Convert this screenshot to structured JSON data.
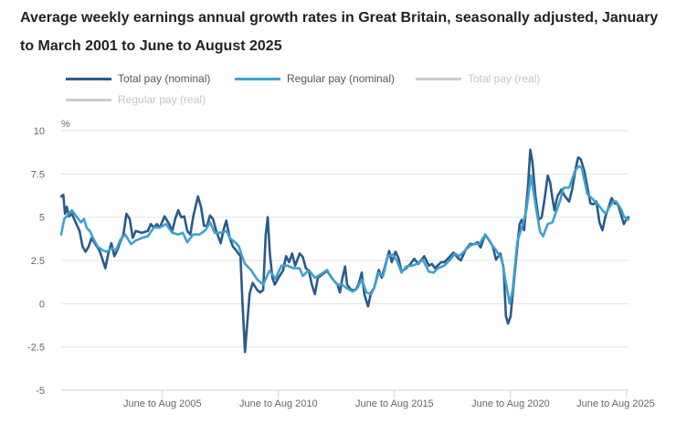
{
  "chart_data": {
    "type": "line",
    "title": "Average weekly earnings annual growth rates in Great Britain, seasonally adjusted, January to March 2001 to June to August 2025",
    "ylabel": "%",
    "xlabel": "",
    "ylim": [
      -5,
      10
    ],
    "yticks": [
      10,
      7.5,
      5,
      2.5,
      0,
      -2.5,
      -5
    ],
    "ytick_labels": [
      "10",
      "7.5",
      "5",
      "2.5",
      "0",
      "-2.5",
      "-5"
    ],
    "xlim": [
      2001.19,
      2025.63
    ],
    "xticks": [
      2005.55,
      2010.55,
      2015.55,
      2020.55,
      2025.55
    ],
    "xtick_labels": [
      "June to Aug 2005",
      "June to Aug 2010",
      "June to Aug 2015",
      "June to Aug 2020",
      "June to Aug 2025"
    ],
    "grid": true,
    "legend_position": "top-left",
    "series": [
      {
        "name": "Total pay (nominal)",
        "color": "#2a5a8c",
        "visible": true,
        "points": [
          [
            2001.19,
            6.2
          ],
          [
            2001.28,
            6.3
          ],
          [
            2001.35,
            5.2
          ],
          [
            2001.43,
            5.6
          ],
          [
            2001.52,
            5.05
          ],
          [
            2001.65,
            5.2
          ],
          [
            2001.78,
            4.8
          ],
          [
            2001.98,
            4.2
          ],
          [
            2002.11,
            3.3
          ],
          [
            2002.24,
            3.0
          ],
          [
            2002.37,
            3.3
          ],
          [
            2002.5,
            3.8
          ],
          [
            2002.63,
            3.5
          ],
          [
            2002.83,
            3.1
          ],
          [
            2002.96,
            2.6
          ],
          [
            2003.09,
            2.05
          ],
          [
            2003.22,
            2.9
          ],
          [
            2003.35,
            3.5
          ],
          [
            2003.48,
            2.75
          ],
          [
            2003.61,
            3.1
          ],
          [
            2003.74,
            3.6
          ],
          [
            2003.87,
            4.0
          ],
          [
            2004.0,
            5.2
          ],
          [
            2004.14,
            4.9
          ],
          [
            2004.27,
            3.8
          ],
          [
            2004.4,
            4.2
          ],
          [
            2004.66,
            4.1
          ],
          [
            2004.92,
            4.2
          ],
          [
            2005.05,
            4.6
          ],
          [
            2005.18,
            4.4
          ],
          [
            2005.31,
            4.6
          ],
          [
            2005.44,
            4.4
          ],
          [
            2005.64,
            5.05
          ],
          [
            2005.84,
            4.6
          ],
          [
            2005.97,
            4.2
          ],
          [
            2006.1,
            4.9
          ],
          [
            2006.23,
            5.4
          ],
          [
            2006.36,
            5.0
          ],
          [
            2006.49,
            5.05
          ],
          [
            2006.62,
            4.2
          ],
          [
            2006.75,
            4.0
          ],
          [
            2006.88,
            5.05
          ],
          [
            2007.08,
            6.2
          ],
          [
            2007.21,
            5.6
          ],
          [
            2007.34,
            4.5
          ],
          [
            2007.47,
            4.5
          ],
          [
            2007.6,
            5.1
          ],
          [
            2007.73,
            4.9
          ],
          [
            2007.87,
            4.2
          ],
          [
            2008.06,
            3.5
          ],
          [
            2008.19,
            4.3
          ],
          [
            2008.3,
            4.8
          ],
          [
            2008.45,
            3.8
          ],
          [
            2008.59,
            3.3
          ],
          [
            2008.72,
            3.1
          ],
          [
            2008.85,
            2.85
          ],
          [
            2008.91,
            2.8
          ],
          [
            2009.0,
            0.1
          ],
          [
            2009.11,
            -2.8
          ],
          [
            2009.17,
            -1.7
          ],
          [
            2009.31,
            0.6
          ],
          [
            2009.44,
            1.2
          ],
          [
            2009.63,
            0.8
          ],
          [
            2009.76,
            0.65
          ],
          [
            2009.89,
            0.8
          ],
          [
            2010.0,
            4.0
          ],
          [
            2010.09,
            5.0
          ],
          [
            2010.18,
            2.9
          ],
          [
            2010.29,
            1.5
          ],
          [
            2010.39,
            1.1
          ],
          [
            2010.55,
            1.5
          ],
          [
            2010.74,
            1.9
          ],
          [
            2010.88,
            2.75
          ],
          [
            2011.01,
            2.4
          ],
          [
            2011.14,
            2.9
          ],
          [
            2011.27,
            2.2
          ],
          [
            2011.46,
            2.9
          ],
          [
            2011.6,
            2.7
          ],
          [
            2011.73,
            2.05
          ],
          [
            2011.86,
            1.9
          ],
          [
            2011.99,
            1.1
          ],
          [
            2012.12,
            0.55
          ],
          [
            2012.25,
            1.5
          ],
          [
            2012.45,
            1.7
          ],
          [
            2012.64,
            1.9
          ],
          [
            2012.9,
            1.4
          ],
          [
            2013.09,
            1.1
          ],
          [
            2013.2,
            0.65
          ],
          [
            2013.29,
            1.4
          ],
          [
            2013.42,
            2.15
          ],
          [
            2013.51,
            1.1
          ],
          [
            2013.68,
            0.8
          ],
          [
            2013.88,
            0.8
          ],
          [
            2014.01,
            1.15
          ],
          [
            2014.14,
            1.8
          ],
          [
            2014.25,
            0.55
          ],
          [
            2014.41,
            -0.15
          ],
          [
            2014.54,
            0.65
          ],
          [
            2014.67,
            0.9
          ],
          [
            2014.87,
            1.95
          ],
          [
            2015.0,
            1.5
          ],
          [
            2015.19,
            2.4
          ],
          [
            2015.32,
            3.05
          ],
          [
            2015.43,
            2.4
          ],
          [
            2015.59,
            3.0
          ],
          [
            2015.72,
            2.65
          ],
          [
            2015.85,
            1.85
          ],
          [
            2016.05,
            2.05
          ],
          [
            2016.24,
            2.3
          ],
          [
            2016.4,
            2.6
          ],
          [
            2016.57,
            2.3
          ],
          [
            2016.83,
            2.75
          ],
          [
            2017.03,
            2.2
          ],
          [
            2017.16,
            2.3
          ],
          [
            2017.29,
            2.05
          ],
          [
            2017.56,
            2.4
          ],
          [
            2017.69,
            2.4
          ],
          [
            2017.88,
            2.65
          ],
          [
            2018.08,
            2.95
          ],
          [
            2018.28,
            2.65
          ],
          [
            2018.41,
            2.5
          ],
          [
            2018.61,
            3.1
          ],
          [
            2018.8,
            3.45
          ],
          [
            2019.0,
            3.45
          ],
          [
            2019.13,
            3.55
          ],
          [
            2019.26,
            3.25
          ],
          [
            2019.46,
            4.0
          ],
          [
            2019.66,
            3.6
          ],
          [
            2019.79,
            3.3
          ],
          [
            2019.92,
            2.55
          ],
          [
            2020.11,
            2.9
          ],
          [
            2020.25,
            2.05
          ],
          [
            2020.35,
            -0.7
          ],
          [
            2020.44,
            -1.15
          ],
          [
            2020.55,
            -0.75
          ],
          [
            2020.71,
            1.5
          ],
          [
            2020.84,
            3.3
          ],
          [
            2020.94,
            4.6
          ],
          [
            2021.03,
            4.85
          ],
          [
            2021.13,
            4.25
          ],
          [
            2021.3,
            6.8
          ],
          [
            2021.4,
            8.9
          ],
          [
            2021.49,
            8.2
          ],
          [
            2021.62,
            6.25
          ],
          [
            2021.76,
            4.85
          ],
          [
            2021.89,
            5.0
          ],
          [
            2022.02,
            6.1
          ],
          [
            2022.15,
            7.4
          ],
          [
            2022.25,
            7.05
          ],
          [
            2022.35,
            6.1
          ],
          [
            2022.44,
            5.4
          ],
          [
            2022.57,
            6.2
          ],
          [
            2022.74,
            6.6
          ],
          [
            2022.87,
            6.25
          ],
          [
            2023.07,
            5.9
          ],
          [
            2023.2,
            6.6
          ],
          [
            2023.36,
            7.85
          ],
          [
            2023.46,
            8.45
          ],
          [
            2023.57,
            8.35
          ],
          [
            2023.72,
            7.7
          ],
          [
            2023.85,
            6.8
          ],
          [
            2023.99,
            5.8
          ],
          [
            2024.12,
            5.75
          ],
          [
            2024.25,
            5.9
          ],
          [
            2024.38,
            4.7
          ],
          [
            2024.51,
            4.25
          ],
          [
            2024.64,
            5.05
          ],
          [
            2024.77,
            5.55
          ],
          [
            2024.9,
            6.1
          ],
          [
            2025.04,
            5.8
          ],
          [
            2025.17,
            5.75
          ],
          [
            2025.3,
            5.2
          ],
          [
            2025.43,
            4.6
          ],
          [
            2025.56,
            4.95
          ],
          [
            2025.63,
            5.0
          ]
        ]
      },
      {
        "name": "Regular pay (nominal)",
        "color": "#3fa0cf",
        "visible": true,
        "points": [
          [
            2001.19,
            4.0
          ],
          [
            2001.32,
            4.9
          ],
          [
            2001.52,
            5.2
          ],
          [
            2001.65,
            5.4
          ],
          [
            2001.84,
            5.05
          ],
          [
            2002.04,
            4.7
          ],
          [
            2002.17,
            4.9
          ],
          [
            2002.3,
            4.35
          ],
          [
            2002.43,
            4.2
          ],
          [
            2002.56,
            3.8
          ],
          [
            2002.76,
            3.3
          ],
          [
            2002.96,
            3.1
          ],
          [
            2003.15,
            3.0
          ],
          [
            2003.35,
            3.2
          ],
          [
            2003.55,
            3.1
          ],
          [
            2003.74,
            3.7
          ],
          [
            2003.94,
            4.0
          ],
          [
            2004.2,
            3.45
          ],
          [
            2004.4,
            3.65
          ],
          [
            2004.66,
            3.8
          ],
          [
            2004.92,
            3.9
          ],
          [
            2005.18,
            4.4
          ],
          [
            2005.44,
            4.4
          ],
          [
            2005.71,
            4.6
          ],
          [
            2005.97,
            4.1
          ],
          [
            2006.23,
            4.0
          ],
          [
            2006.43,
            4.1
          ],
          [
            2006.62,
            3.55
          ],
          [
            2006.88,
            4.0
          ],
          [
            2007.15,
            4.0
          ],
          [
            2007.41,
            4.25
          ],
          [
            2007.6,
            4.7
          ],
          [
            2007.8,
            4.1
          ],
          [
            2008.06,
            4.1
          ],
          [
            2008.32,
            4.2
          ],
          [
            2008.45,
            3.8
          ],
          [
            2008.72,
            3.5
          ],
          [
            2008.85,
            3.3
          ],
          [
            2008.98,
            2.75
          ],
          [
            2009.11,
            2.3
          ],
          [
            2009.37,
            1.95
          ],
          [
            2009.63,
            1.4
          ],
          [
            2009.89,
            1.1
          ],
          [
            2010.16,
            1.9
          ],
          [
            2010.29,
            1.7
          ],
          [
            2010.42,
            1.45
          ],
          [
            2010.68,
            2.2
          ],
          [
            2010.94,
            2.2
          ],
          [
            2011.2,
            2.05
          ],
          [
            2011.46,
            2.05
          ],
          [
            2011.6,
            1.6
          ],
          [
            2011.86,
            1.95
          ],
          [
            2012.12,
            1.5
          ],
          [
            2012.38,
            1.7
          ],
          [
            2012.64,
            1.95
          ],
          [
            2012.9,
            1.4
          ],
          [
            2013.09,
            1.1
          ],
          [
            2013.29,
            1.1
          ],
          [
            2013.49,
            0.9
          ],
          [
            2013.75,
            0.7
          ],
          [
            2013.95,
            0.9
          ],
          [
            2014.14,
            1.4
          ],
          [
            2014.34,
            0.65
          ],
          [
            2014.54,
            0.55
          ],
          [
            2014.67,
            0.9
          ],
          [
            2014.87,
            1.8
          ],
          [
            2015.06,
            1.6
          ],
          [
            2015.26,
            2.75
          ],
          [
            2015.46,
            2.85
          ],
          [
            2015.65,
            2.5
          ],
          [
            2015.85,
            1.8
          ],
          [
            2016.05,
            2.15
          ],
          [
            2016.31,
            2.2
          ],
          [
            2016.51,
            2.3
          ],
          [
            2016.77,
            2.55
          ],
          [
            2017.03,
            1.85
          ],
          [
            2017.23,
            1.8
          ],
          [
            2017.42,
            2.05
          ],
          [
            2017.69,
            2.2
          ],
          [
            2017.95,
            2.55
          ],
          [
            2018.15,
            2.9
          ],
          [
            2018.34,
            2.75
          ],
          [
            2018.61,
            3.1
          ],
          [
            2018.8,
            3.35
          ],
          [
            2019.0,
            3.45
          ],
          [
            2019.2,
            3.45
          ],
          [
            2019.46,
            4.0
          ],
          [
            2019.72,
            3.45
          ],
          [
            2019.92,
            3.1
          ],
          [
            2020.18,
            2.55
          ],
          [
            2020.31,
            1.5
          ],
          [
            2020.51,
            0.0
          ],
          [
            2020.64,
            0.8
          ],
          [
            2020.84,
            3.6
          ],
          [
            2021.1,
            4.7
          ],
          [
            2021.23,
            5.4
          ],
          [
            2021.43,
            7.4
          ],
          [
            2021.62,
            5.75
          ],
          [
            2021.82,
            4.15
          ],
          [
            2021.95,
            3.9
          ],
          [
            2022.15,
            4.6
          ],
          [
            2022.35,
            4.7
          ],
          [
            2022.48,
            5.2
          ],
          [
            2022.67,
            5.9
          ],
          [
            2022.83,
            6.7
          ],
          [
            2023.07,
            6.7
          ],
          [
            2023.33,
            7.7
          ],
          [
            2023.49,
            7.95
          ],
          [
            2023.62,
            7.85
          ],
          [
            2023.85,
            6.35
          ],
          [
            2024.12,
            6.0
          ],
          [
            2024.31,
            5.75
          ],
          [
            2024.51,
            5.4
          ],
          [
            2024.64,
            5.2
          ],
          [
            2024.77,
            5.5
          ],
          [
            2024.97,
            5.9
          ],
          [
            2025.1,
            5.9
          ],
          [
            2025.3,
            5.5
          ],
          [
            2025.43,
            5.05
          ],
          [
            2025.59,
            4.85
          ],
          [
            2025.63,
            4.9
          ]
        ]
      },
      {
        "name": "Total pay (real)",
        "color": "#c8c8c8",
        "visible": false,
        "points": []
      },
      {
        "name": "Regular pay (real)",
        "color": "#c8c8c8",
        "visible": false,
        "points": []
      }
    ]
  }
}
